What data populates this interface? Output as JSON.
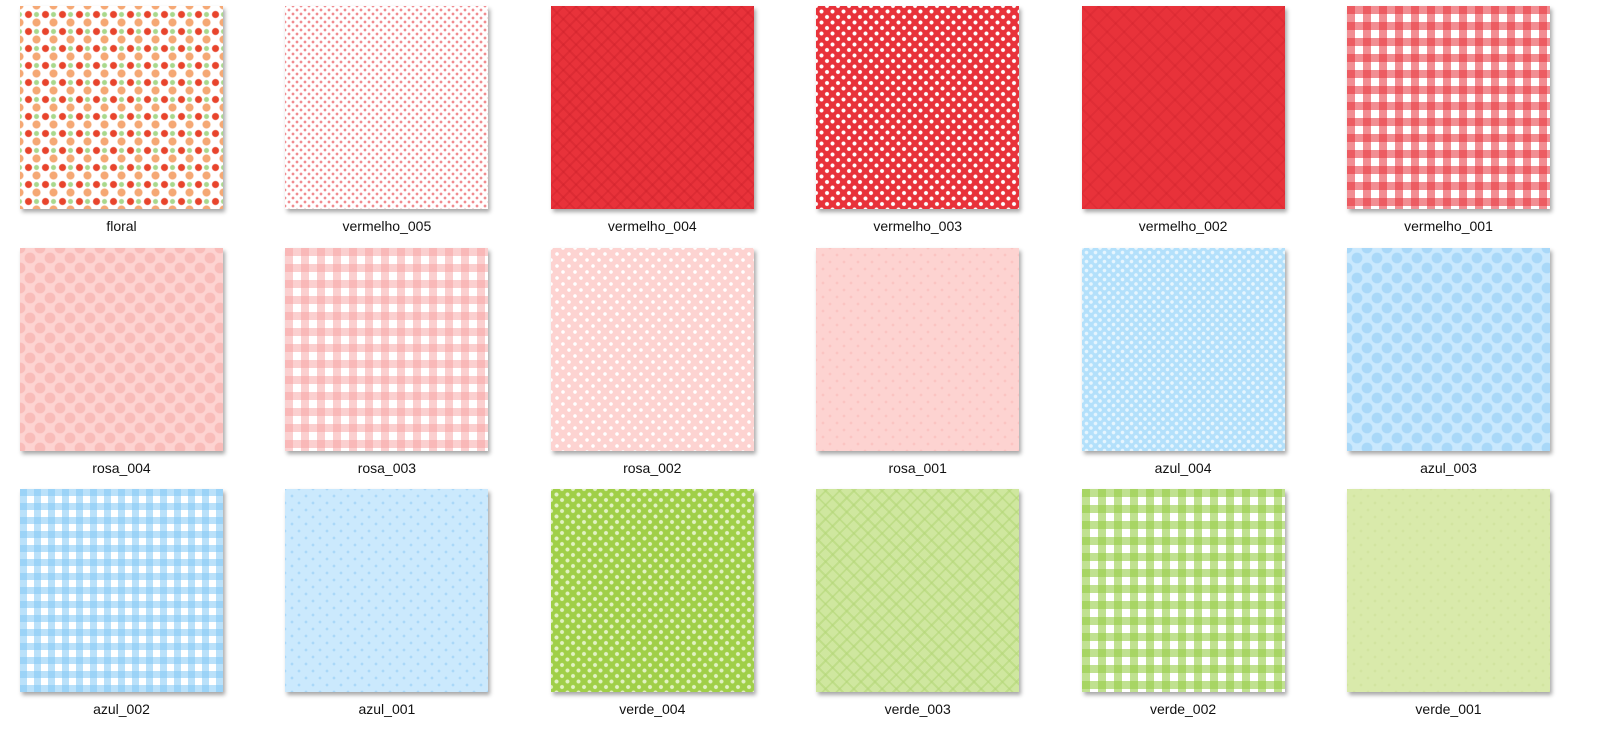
{
  "files": [
    "floral",
    "vermelho_005",
    "vermelho_004",
    "vermelho_003",
    "vermelho_002",
    "vermelho_001",
    "rosa_004",
    "rosa_003",
    "rosa_002",
    "rosa_001",
    "azul_004",
    "azul_003",
    "azul_002",
    "azul_001",
    "verde_004",
    "verde_003",
    "verde_002",
    "verde_001"
  ]
}
